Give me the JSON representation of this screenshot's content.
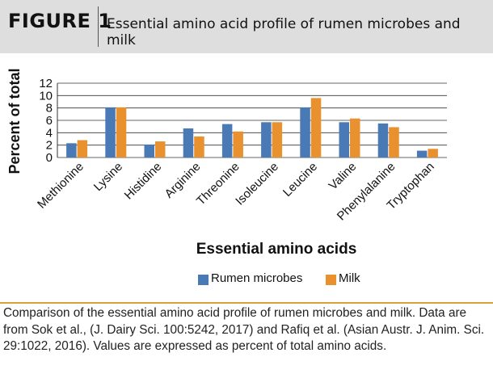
{
  "figure": {
    "label": "FIGURE 1",
    "title": "Essential amino acid profile of rumen microbes and milk"
  },
  "chart_data": {
    "type": "bar",
    "categories": [
      "Methionine",
      "Lysine",
      "Histidine",
      "Arginine",
      "Threonine",
      "Isoleucine",
      "Leucine",
      "Valine",
      "Phenylalanine",
      "Tryptophan"
    ],
    "series": [
      {
        "name": "Rumen microbes",
        "color": "#4a7ab5",
        "values": [
          2.3,
          8.1,
          2.1,
          4.7,
          5.4,
          5.7,
          8.1,
          5.7,
          5.5,
          1.1
        ]
      },
      {
        "name": "Milk",
        "color": "#e8912e",
        "values": [
          2.8,
          8.1,
          2.6,
          3.4,
          4.2,
          5.7,
          9.6,
          6.3,
          4.9,
          1.4
        ]
      }
    ],
    "xlabel": "Essential amino acids",
    "ylabel": "Percent of total",
    "ylim": [
      0,
      12
    ],
    "yticks": [
      "0",
      "2",
      "4",
      "6",
      "8",
      "10",
      "12"
    ],
    "grid": true,
    "legend": "bottom"
  },
  "caption": "Comparison of the essential amino acid profile of rumen microbes and milk. Data are from Sok et al., (J. Dairy Sci. 100:5242, 2017) and Rafiq et al. (Asian Austr. J. Anim. Sci. 29:1022, 2016). Values are expressed as percent of total amino acids."
}
